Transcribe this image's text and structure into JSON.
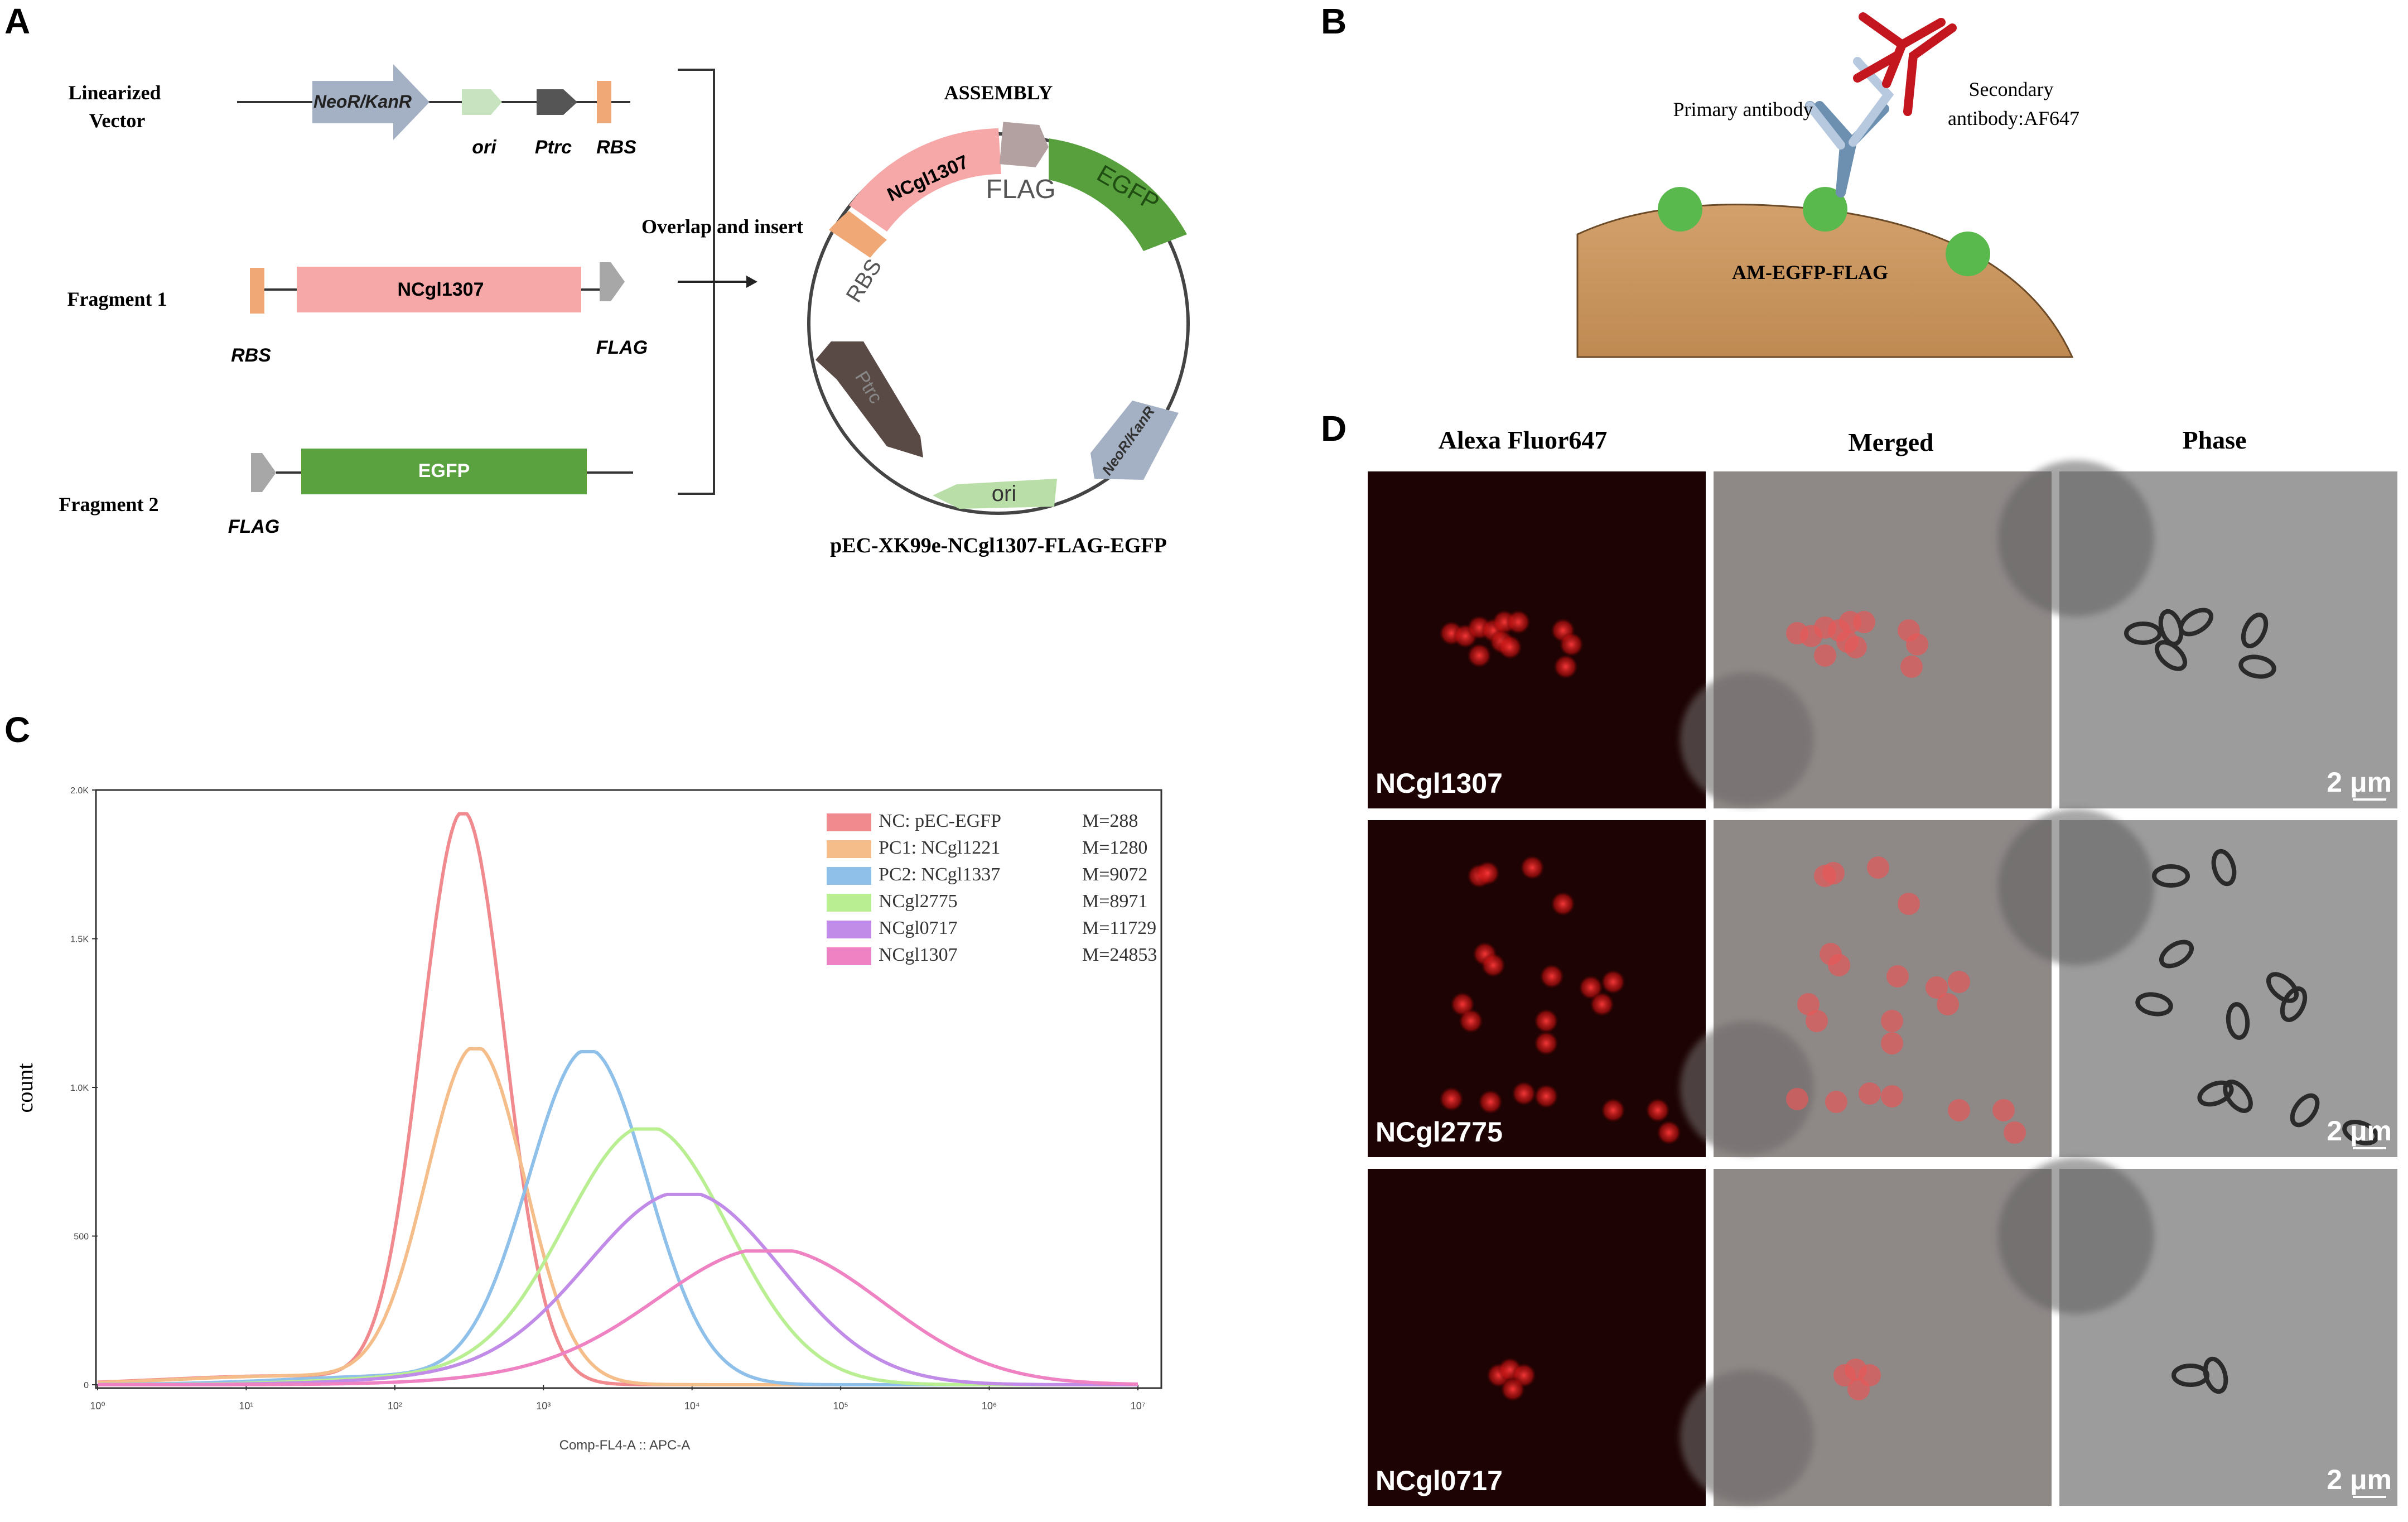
{
  "panels": {
    "a": "A",
    "b": "B",
    "c": "C",
    "d": "D"
  },
  "panel_a": {
    "rows": [
      {
        "label": "Linearized\nVector"
      },
      {
        "label": "Fragment 1"
      },
      {
        "label": "Fragment 2"
      }
    ],
    "vector_parts": {
      "neor": "NeoR/KanR",
      "ori": "ori",
      "ptrc": "Ptrc",
      "rbs": "RBS"
    },
    "fragment1_parts": {
      "rbs": "RBS",
      "gene": "NCgl1307",
      "flag": "FLAG"
    },
    "fragment2_parts": {
      "flag": "FLAG",
      "gene": "EGFP"
    },
    "arrow_label": "Overlap and insert",
    "assembly_title": "ASSEMBLY",
    "plasmid_parts": {
      "gene": "NCgl1307",
      "flag": "FLAG",
      "egfp": "EGFP",
      "rbs": "RBS",
      "neor": "NeoR/KanR",
      "ori": "ori",
      "ptrc": "Ptrc"
    },
    "plasmid_name": "pEC-XK99e-NCgl1307-FLAG-EGFP"
  },
  "panel_b": {
    "primary": "Primary antibody",
    "secondary": "Secondary\nantibody:AF647",
    "cell": "AM-EGFP-FLAG"
  },
  "chart_data": {
    "type": "line",
    "xlabel": "Comp-FL4-A :: APC-A",
    "ylabel": "count",
    "x_scale": "log",
    "xlim": [
      1,
      10000000
    ],
    "ylim": [
      0,
      2000
    ],
    "x_ticks": [
      "10⁰",
      "10¹",
      "10²",
      "10³",
      "10⁴",
      "10⁵",
      "10⁶",
      "10⁷"
    ],
    "y_ticks": [
      "0",
      "500",
      "1.0K",
      "1.5K",
      "2.0K"
    ],
    "legend_position": "top-right",
    "series": [
      {
        "name": "NC: pEC-EGFP",
        "m": "M=288",
        "color": "#f08a8f",
        "peak_x": 288,
        "peak_y": 1920,
        "log_width": 0.28
      },
      {
        "name": "PC1: NCgl1221",
        "m": "M=1280",
        "color": "#f5bd8a",
        "peak_x": 350,
        "peak_y": 1130,
        "log_width": 0.33
      },
      {
        "name": "PC2: NCgl1337",
        "m": "M=9072",
        "color": "#8ec0ea",
        "peak_x": 2000,
        "peak_y": 1120,
        "log_width": 0.4
      },
      {
        "name": "NCgl2775",
        "m": "M=8971",
        "color": "#b9ef92",
        "peak_x": 5000,
        "peak_y": 860,
        "log_width": 0.55
      },
      {
        "name": "NCgl0717",
        "m": "M=11729",
        "color": "#c18be8",
        "peak_x": 9000,
        "peak_y": 640,
        "log_width": 0.65
      },
      {
        "name": "NCgl1307",
        "m": "M=24853",
        "color": "#ef82c2",
        "peak_x": 35000,
        "peak_y": 450,
        "log_width": 0.75
      }
    ]
  },
  "panel_d": {
    "columns": [
      "Alexa Fluor647",
      "Merged",
      "Phase"
    ],
    "rows": [
      "NCgl1307",
      "NCgl2775",
      "NCgl0717"
    ],
    "scale": "2 μm"
  }
}
